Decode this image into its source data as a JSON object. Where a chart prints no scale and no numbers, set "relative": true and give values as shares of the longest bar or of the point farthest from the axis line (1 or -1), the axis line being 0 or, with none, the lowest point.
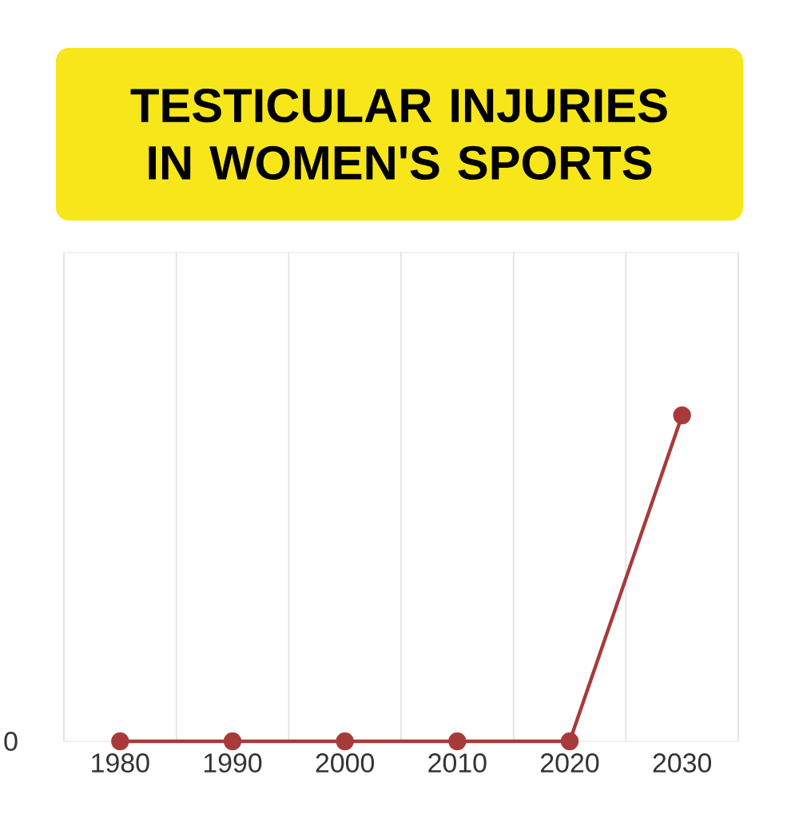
{
  "chart_data": {
    "type": "line",
    "title": "TESTICULAR INJURIES IN WOMEN'S SPORTS",
    "categories": [
      "1980",
      "1990",
      "2000",
      "2010",
      "2020",
      "2030"
    ],
    "values": [
      0,
      0,
      0,
      0,
      0,
      1
    ],
    "color": "#a83a3a",
    "relative": true,
    "grid": true,
    "marker": "circle",
    "line_style": "solid",
    "annotations": [
      "0"
    ]
  }
}
